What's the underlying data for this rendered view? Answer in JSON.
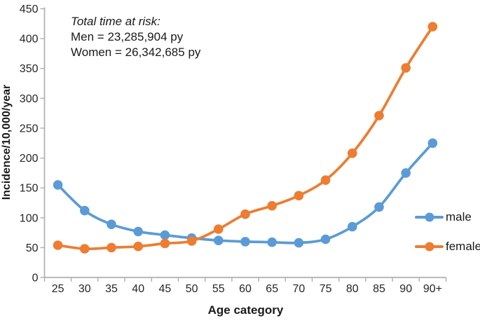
{
  "chart_data": {
    "type": "line",
    "title": "",
    "categories": [
      "25",
      "30",
      "35",
      "40",
      "45",
      "50",
      "55",
      "60",
      "65",
      "70",
      "75",
      "80",
      "85",
      "90",
      "90+"
    ],
    "series": [
      {
        "name": "male",
        "color": "#5B9BD5",
        "values": [
          155,
          112,
          89,
          77,
          71,
          66,
          62,
          60,
          59,
          58,
          64,
          85,
          118,
          175,
          225
        ]
      },
      {
        "name": "female",
        "color": "#ED7D31",
        "values": [
          54,
          48,
          50,
          52,
          57,
          61,
          81,
          106,
          120,
          137,
          163,
          208,
          271,
          351,
          420
        ]
      }
    ],
    "xlabel": "Age category",
    "ylabel": "Incidence/10,000/year",
    "ylim": [
      0,
      450
    ],
    "yticks": [
      0,
      50,
      100,
      150,
      200,
      250,
      300,
      350,
      400,
      450
    ],
    "grid": false,
    "legend_position": "right",
    "marker": "circle",
    "line_smooth": true,
    "axis_color": "#AFAFAF",
    "text_color": "#262626",
    "annotation": {
      "title": "Total time at risk:",
      "lines": [
        "Men = 23,285,904 py",
        "Women = 26,342,685 py"
      ]
    }
  }
}
